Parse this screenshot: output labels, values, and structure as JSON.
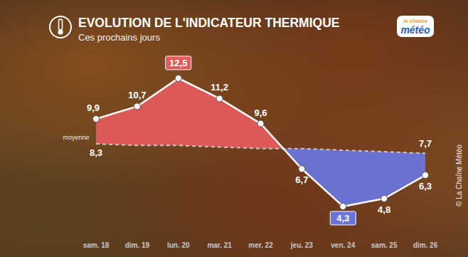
{
  "chart_data": {
    "type": "line",
    "title": "EVOLUTION DE L'INDICATEUR THERMIQUE",
    "subtitle": "Ces prochains jours",
    "annotations": [
      "la chaîne",
      "météo",
      "© La Chaîne Météo"
    ],
    "categories": [
      "sam. 18",
      "dim. 19",
      "lun. 20",
      "mar. 21",
      "mer. 22",
      "jeu. 23",
      "ven. 24",
      "sam. 25",
      "dim. 26"
    ],
    "series": [
      {
        "color": "#ffffff",
        "marker": "circle",
        "line_style": "solid",
        "values": [
          9.9,
          10.7,
          12.5,
          11.2,
          9.6,
          6.7,
          4.3,
          4.8,
          6.3
        ],
        "value_labels": [
          "9,9",
          "10,7",
          "12,5",
          "11,2",
          "9,6",
          "6,7",
          "4,3",
          "4,8",
          "6,3"
        ]
      },
      {
        "name": "moyenne",
        "color": "#d8d8d8",
        "line_style": "dashed",
        "values": [
          8.3,
          8.2,
          8.2,
          8.1,
          8.0,
          8.0,
          7.9,
          7.8,
          7.7
        ],
        "value_labels": [
          "8,3",
          null,
          null,
          null,
          null,
          null,
          null,
          null,
          "7,7"
        ]
      }
    ],
    "ylim": [
      3,
      15
    ],
    "grid": false,
    "data_labels": true,
    "tick_labels": "x"
  }
}
